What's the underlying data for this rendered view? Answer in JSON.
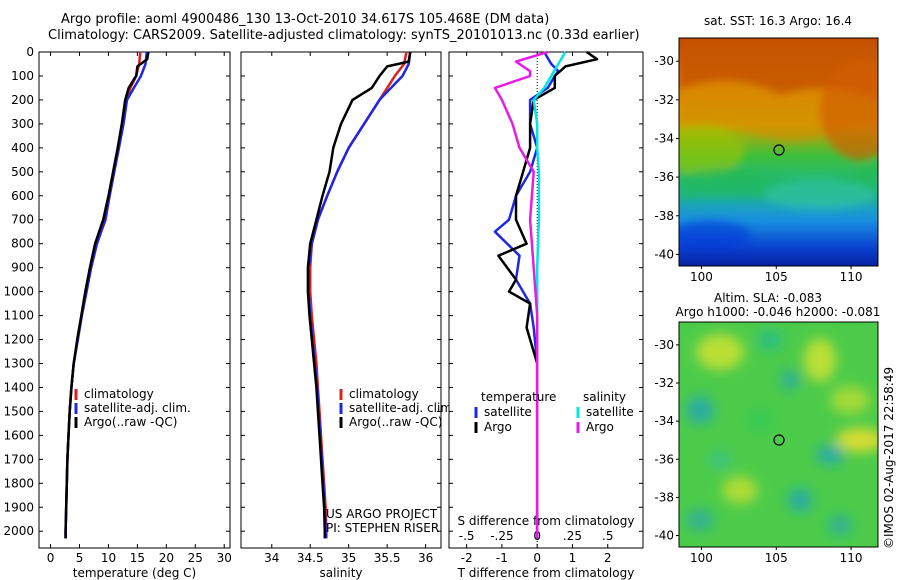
{
  "title_line1": "Argo profile: aoml 4900486_130 13-Oct-2010 34.617S 105.468E (DM data)",
  "title_line2": "Climatology: CARS2009. Satellite-adjusted climatology: synTS_20101013.nc (0.33d earlier)",
  "credit": "US ARGO PROJECT",
  "pi": "PI: STEPHEN RISER",
  "imos_stamp": "©IMOS 02-Aug-2017 22:58:49",
  "colors": {
    "climatology": "#e0201c",
    "satellite": "#1c28e6",
    "argo": "#000000",
    "sal_satellite": "#00e6e6",
    "sal_argo": "#e61ce6"
  },
  "chart_data": [
    {
      "type": "line",
      "xlabel": "temperature (deg C)",
      "xlim": [
        -2,
        31
      ],
      "ylim": [
        0,
        2070
      ],
      "y_inverted": true,
      "xticks": [
        0,
        5,
        10,
        15,
        20,
        25,
        30
      ],
      "yticks": [
        0,
        100,
        200,
        300,
        400,
        500,
        600,
        700,
        800,
        900,
        1000,
        1100,
        1200,
        1300,
        1400,
        1500,
        1600,
        1700,
        1800,
        1900,
        2000
      ],
      "legend": [
        "climatology",
        "satellite-adj. clim.",
        "Argo(..raw -QC)"
      ],
      "legend_position": "bottom-center",
      "series": [
        {
          "name": "climatology",
          "color": "#e0201c",
          "points": [
            [
              15.5,
              0
            ],
            [
              15.3,
              50
            ],
            [
              14.8,
              100
            ],
            [
              13.8,
              150
            ],
            [
              13,
              200
            ],
            [
              12.5,
              300
            ],
            [
              11.8,
              400
            ],
            [
              11,
              500
            ],
            [
              10.2,
              600
            ],
            [
              9.5,
              700
            ],
            [
              8,
              800
            ],
            [
              7,
              900
            ],
            [
              6.2,
              1000
            ],
            [
              5.4,
              1100
            ],
            [
              4.7,
              1200
            ],
            [
              4,
              1300
            ],
            [
              3.6,
              1400
            ],
            [
              3.3,
              1500
            ],
            [
              3.1,
              1600
            ],
            [
              2.9,
              1700
            ],
            [
              2.8,
              1800
            ],
            [
              2.7,
              1900
            ],
            [
              2.6,
              2000
            ],
            [
              2.6,
              2030
            ]
          ]
        },
        {
          "name": "satellite-adj. clim.",
          "color": "#1c28e6",
          "points": [
            [
              16.6,
              0
            ],
            [
              16.4,
              50
            ],
            [
              15.6,
              100
            ],
            [
              14.4,
              150
            ],
            [
              13.2,
              200
            ],
            [
              12.6,
              300
            ],
            [
              11.8,
              400
            ],
            [
              11,
              500
            ],
            [
              10.2,
              600
            ],
            [
              9.4,
              700
            ],
            [
              8,
              800
            ],
            [
              7,
              900
            ],
            [
              6.2,
              1000
            ],
            [
              5.4,
              1100
            ],
            [
              4.7,
              1200
            ],
            [
              4,
              1300
            ],
            [
              3.6,
              1400
            ],
            [
              3.3,
              1500
            ],
            [
              3.1,
              1600
            ],
            [
              2.9,
              1700
            ],
            [
              2.8,
              1800
            ],
            [
              2.7,
              1900
            ],
            [
              2.6,
              2000
            ],
            [
              2.6,
              2030
            ]
          ]
        },
        {
          "name": "Argo(..raw -QC)",
          "color": "#000000",
          "points": [
            [
              16.9,
              0
            ],
            [
              16.7,
              30
            ],
            [
              15,
              60
            ],
            [
              14.8,
              100
            ],
            [
              14.5,
              110
            ],
            [
              13.5,
              150
            ],
            [
              12.9,
              200
            ],
            [
              12.3,
              300
            ],
            [
              11.6,
              400
            ],
            [
              10.8,
              500
            ],
            [
              10,
              600
            ],
            [
              9.1,
              700
            ],
            [
              7.7,
              800
            ],
            [
              6.8,
              900
            ],
            [
              6,
              1000
            ],
            [
              5.3,
              1100
            ],
            [
              4.6,
              1200
            ],
            [
              4,
              1300
            ],
            [
              3.6,
              1400
            ],
            [
              3.3,
              1500
            ],
            [
              3.1,
              1600
            ],
            [
              2.9,
              1700
            ],
            [
              2.8,
              1800
            ],
            [
              2.7,
              1900
            ],
            [
              2.6,
              2000
            ],
            [
              2.6,
              2030
            ]
          ]
        }
      ]
    },
    {
      "type": "line",
      "xlabel": "salinity",
      "xlim": [
        33.6,
        36.2
      ],
      "ylim": [
        0,
        2070
      ],
      "y_inverted": true,
      "xticks": [
        34,
        34.5,
        35,
        35.5,
        36
      ],
      "legend": [
        "climatology",
        "satellite-adj. clim.",
        "Argo(..raw -QC)"
      ],
      "legend_position": "bottom-right",
      "series": [
        {
          "name": "climatology",
          "color": "#e0201c",
          "points": [
            [
              35.75,
              0
            ],
            [
              35.72,
              50
            ],
            [
              35.6,
              100
            ],
            [
              35.5,
              150
            ],
            [
              35.4,
              200
            ],
            [
              35.2,
              300
            ],
            [
              35,
              400
            ],
            [
              34.85,
              500
            ],
            [
              34.72,
              600
            ],
            [
              34.6,
              700
            ],
            [
              34.52,
              800
            ],
            [
              34.5,
              900
            ],
            [
              34.5,
              1000
            ],
            [
              34.52,
              1100
            ],
            [
              34.55,
              1200
            ],
            [
              34.58,
              1300
            ],
            [
              34.6,
              1400
            ],
            [
              34.62,
              1500
            ],
            [
              34.64,
              1600
            ],
            [
              34.66,
              1700
            ],
            [
              34.68,
              1800
            ],
            [
              34.7,
              1900
            ],
            [
              34.71,
              2000
            ],
            [
              34.71,
              2030
            ]
          ]
        },
        {
          "name": "satellite-adj. clim.",
          "color": "#1c28e6",
          "points": [
            [
              35.8,
              0
            ],
            [
              35.78,
              50
            ],
            [
              35.7,
              100
            ],
            [
              35.55,
              150
            ],
            [
              35.4,
              200
            ],
            [
              35.2,
              300
            ],
            [
              35,
              400
            ],
            [
              34.85,
              500
            ],
            [
              34.72,
              600
            ],
            [
              34.6,
              700
            ],
            [
              34.52,
              800
            ],
            [
              34.48,
              900
            ],
            [
              34.48,
              1000
            ],
            [
              34.5,
              1100
            ],
            [
              34.53,
              1200
            ],
            [
              34.56,
              1300
            ],
            [
              34.59,
              1400
            ],
            [
              34.61,
              1500
            ],
            [
              34.63,
              1600
            ],
            [
              34.65,
              1700
            ],
            [
              34.67,
              1800
            ],
            [
              34.69,
              1900
            ],
            [
              34.7,
              2000
            ],
            [
              34.7,
              2030
            ]
          ]
        },
        {
          "name": "Argo(..raw -QC)",
          "color": "#000000",
          "points": [
            [
              35.8,
              0
            ],
            [
              35.78,
              40
            ],
            [
              35.5,
              60
            ],
            [
              35.4,
              100
            ],
            [
              35.3,
              150
            ],
            [
              35.05,
              200
            ],
            [
              34.9,
              300
            ],
            [
              34.8,
              400
            ],
            [
              34.75,
              500
            ],
            [
              34.66,
              600
            ],
            [
              34.58,
              700
            ],
            [
              34.5,
              800
            ],
            [
              34.47,
              900
            ],
            [
              34.47,
              1000
            ],
            [
              34.49,
              1100
            ],
            [
              34.52,
              1200
            ],
            [
              34.55,
              1300
            ],
            [
              34.58,
              1400
            ],
            [
              34.6,
              1500
            ],
            [
              34.62,
              1600
            ],
            [
              34.64,
              1700
            ],
            [
              34.66,
              1800
            ],
            [
              34.68,
              1900
            ],
            [
              34.69,
              2000
            ],
            [
              34.69,
              2030
            ]
          ]
        }
      ]
    },
    {
      "type": "line",
      "xlabel": "T difference from climatology",
      "xlabel_top": "S difference from climatology",
      "xlim": [
        -2.5,
        3
      ],
      "ylim": [
        0,
        2070
      ],
      "y_inverted": true,
      "xticks": [
        -2,
        -1,
        0,
        1,
        2
      ],
      "xticks_top": [
        -0.5,
        -0.25,
        0,
        0.25,
        0.5
      ],
      "legend_titles": [
        "temperature",
        "salinity"
      ],
      "legend": [
        "satellite",
        "Argo",
        "satellite",
        "Argo"
      ],
      "legend_position": "bottom",
      "series": [
        {
          "name": "satellite",
          "group": "temperature",
          "color": "#1c28e6",
          "points": [
            [
              0.2,
              0
            ],
            [
              0.4,
              50
            ],
            [
              0.6,
              80
            ],
            [
              0.5,
              100
            ],
            [
              0.3,
              150
            ],
            [
              -0.2,
              200
            ],
            [
              -0.2,
              300
            ],
            [
              0,
              400
            ],
            [
              -0.2,
              500
            ],
            [
              -0.6,
              600
            ],
            [
              -0.8,
              700
            ],
            [
              -1.2,
              750
            ],
            [
              -0.5,
              850
            ],
            [
              -0.6,
              950
            ],
            [
              -0.2,
              1050
            ],
            [
              -0.1,
              1150
            ],
            [
              0,
              1300
            ],
            [
              0,
              1500
            ],
            [
              0,
              1700
            ],
            [
              0,
              1900
            ],
            [
              0,
              2030
            ]
          ]
        },
        {
          "name": "Argo",
          "group": "temperature",
          "color": "#000000",
          "points": [
            [
              1.4,
              0
            ],
            [
              1.7,
              30
            ],
            [
              0.8,
              60
            ],
            [
              0.5,
              100
            ],
            [
              0.5,
              150
            ],
            [
              -0.1,
              200
            ],
            [
              -0.2,
              300
            ],
            [
              -0.2,
              400
            ],
            [
              -0.4,
              500
            ],
            [
              -0.6,
              600
            ],
            [
              -0.6,
              700
            ],
            [
              -0.3,
              800
            ],
            [
              -1.1,
              850
            ],
            [
              -0.6,
              950
            ],
            [
              -0.8,
              1000
            ],
            [
              -0.2,
              1050
            ],
            [
              -0.3,
              1150
            ],
            [
              0,
              1300
            ],
            [
              0,
              1500
            ],
            [
              0,
              1700
            ],
            [
              0,
              1900
            ],
            [
              0,
              2030
            ]
          ]
        },
        {
          "name": "satellite",
          "group": "salinity",
          "color": "#00e6e6",
          "points": [
            [
              0.8,
              0
            ],
            [
              0.6,
              50
            ],
            [
              0.4,
              100
            ],
            [
              0.2,
              150
            ],
            [
              -0.1,
              200
            ],
            [
              0,
              300
            ],
            [
              0,
              400
            ],
            [
              0.05,
              500
            ],
            [
              0.05,
              700
            ],
            [
              0,
              900
            ],
            [
              0,
              1100
            ],
            [
              0,
              1300
            ],
            [
              0,
              1500
            ],
            [
              0,
              1700
            ],
            [
              0,
              1900
            ],
            [
              0,
              2030
            ]
          ]
        },
        {
          "name": "Argo",
          "group": "salinity",
          "color": "#e61ce6",
          "points": [
            [
              0.3,
              0
            ],
            [
              -0.6,
              40
            ],
            [
              -0.2,
              80
            ],
            [
              -0.2,
              100
            ],
            [
              -1.2,
              150
            ],
            [
              -1,
              200
            ],
            [
              -0.7,
              300
            ],
            [
              -0.5,
              400
            ],
            [
              -0.1,
              500
            ],
            [
              -0.2,
              700
            ],
            [
              -0.1,
              900
            ],
            [
              0,
              1100
            ],
            [
              0,
              1300
            ],
            [
              0,
              1500
            ],
            [
              0,
              1700
            ],
            [
              0,
              1900
            ],
            [
              0,
              2030
            ]
          ]
        }
      ]
    },
    {
      "type": "heatmap",
      "title": "sat. SST: 16.3 Argo: 16.4",
      "xlim": [
        98.5,
        111.8
      ],
      "ylim": [
        -40.6,
        -28.8
      ],
      "xticks": [
        100,
        105,
        110
      ],
      "yticks": [
        -30,
        -32,
        -34,
        -36,
        -38,
        -40
      ],
      "marker": [
        105.468,
        -34.617
      ]
    },
    {
      "type": "heatmap",
      "title": "Altim. SLA: -0.083",
      "subtitle": "Argo h1000: -0.046 h2000: -0.081",
      "xlim": [
        98.5,
        111.8
      ],
      "ylim": [
        -40.6,
        -28.8
      ],
      "xticks": [
        100,
        105,
        110
      ],
      "yticks": [
        -30,
        -32,
        -34,
        -36,
        -38,
        -40
      ],
      "marker": [
        105.468,
        -34.617
      ]
    }
  ]
}
